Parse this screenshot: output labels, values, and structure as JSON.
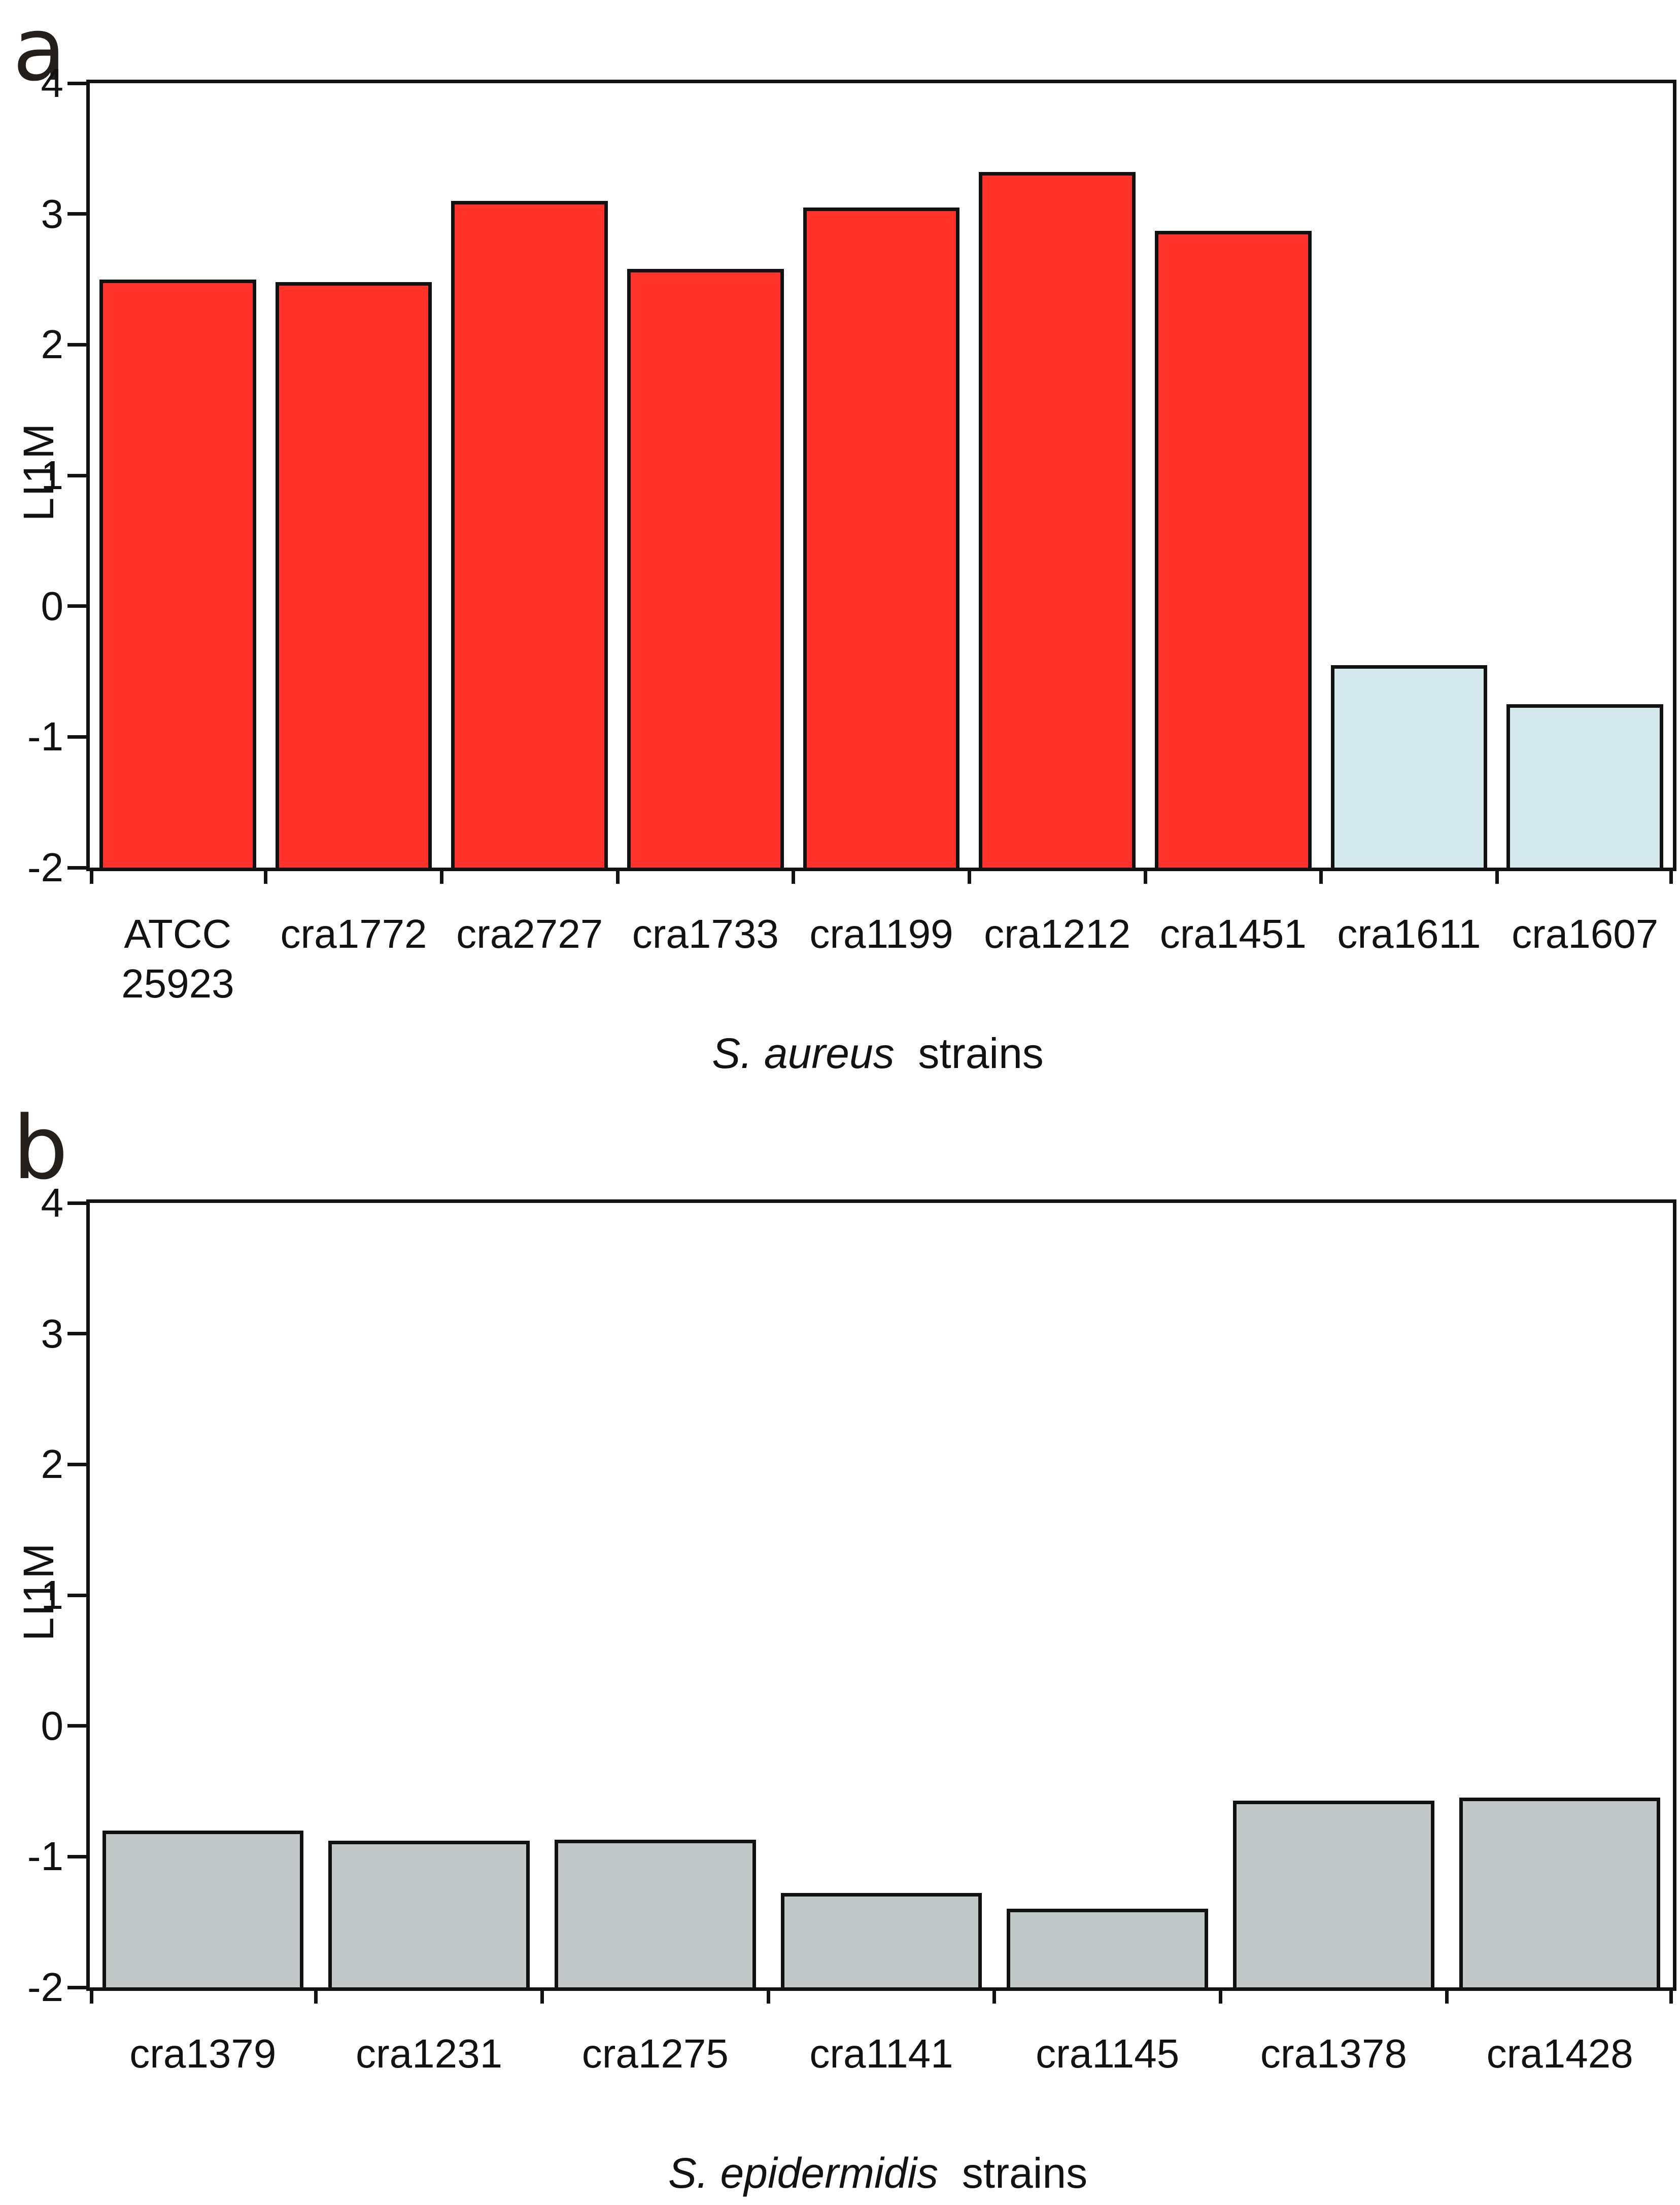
{
  "figure": {
    "background": "#ffffff",
    "text_color": "#121212",
    "axis_color": "#121212"
  },
  "chart_data": [
    {
      "type": "bar",
      "panel_letter": "a",
      "ylabel": "LI1M",
      "xtitle_italic": "S. aureus",
      "xtitle_rest": "  strains",
      "categories": [
        "ATCC 25923",
        "cra1772",
        "cra2727",
        "cra1733",
        "cra1199",
        "cra1212",
        "cra1451",
        "cra1611",
        "cra1607"
      ],
      "categories_display": [
        "ATCC\n25923",
        "cra1772",
        "cra2727",
        "cra1733",
        "cra1199",
        "cra1212",
        "cra1451",
        "cra1611",
        "cra1607"
      ],
      "values": [
        2.5,
        2.48,
        3.1,
        2.58,
        3.05,
        3.32,
        2.87,
        -0.45,
        -0.75
      ],
      "bar_colors": [
        "#ff3329",
        "#ff3329",
        "#ff3329",
        "#ff3329",
        "#ff3329",
        "#ff3329",
        "#ff3329",
        "#d3e9ec",
        "#d3e9ec"
      ],
      "bar_border_color": "#111111",
      "ylim": [
        -2,
        4
      ],
      "yticks": [
        4,
        3,
        2,
        1,
        0,
        -1,
        -2
      ],
      "bar_baseline": -2,
      "grid": false,
      "legend": null
    },
    {
      "type": "bar",
      "panel_letter": "b",
      "ylabel": "LI1M",
      "xtitle_italic": "S. epidermidis",
      "xtitle_rest": "  strains",
      "categories": [
        "cra1379",
        "cra1231",
        "cra1275",
        "cra1141",
        "cra1145",
        "cra1378",
        "cra1428"
      ],
      "categories_display": [
        "cra1379",
        "cra1231",
        "cra1275",
        "cra1141",
        "cra1145",
        "cra1378",
        "cra1428"
      ],
      "values": [
        -0.8,
        -0.88,
        -0.87,
        -1.28,
        -1.4,
        -0.57,
        -0.55
      ],
      "bar_colors": [
        "#c2c7c7",
        "#c2c7c7",
        "#c2c7c7",
        "#c2c7c7",
        "#c2c7c7",
        "#c2c7c7",
        "#c2c7c7"
      ],
      "bar_border_color": "#111111",
      "ylim": [
        -2,
        4
      ],
      "yticks": [
        4,
        3,
        2,
        1,
        0,
        -1,
        -2
      ],
      "bar_baseline": -2,
      "grid": false,
      "legend": null
    }
  ]
}
